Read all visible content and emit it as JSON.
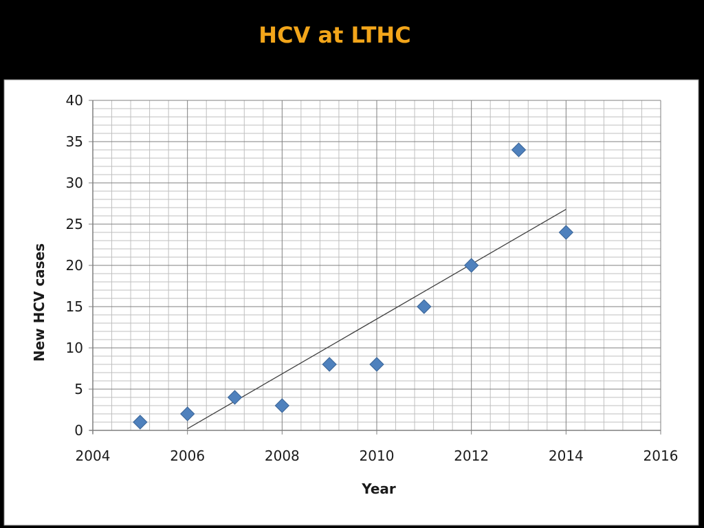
{
  "slide": {
    "title": "HCV at LTHC"
  },
  "chart_data": {
    "type": "scatter",
    "title": "",
    "xlabel": "Year",
    "ylabel": "New HCV cases",
    "xlim": [
      2004,
      2016
    ],
    "ylim": [
      0,
      40
    ],
    "x_ticks": [
      2004,
      2006,
      2008,
      2010,
      2012,
      2014,
      2016
    ],
    "y_ticks": [
      0,
      5,
      10,
      15,
      20,
      25,
      30,
      35,
      40
    ],
    "grid": true,
    "legend": "none",
    "series": [
      {
        "marker": "diamond",
        "color": "#4F81BD",
        "x": [
          2005,
          2006,
          2007,
          2008,
          2009,
          2010,
          2011,
          2012,
          2013,
          2014
        ],
        "y": [
          1,
          2,
          4,
          3,
          8,
          8,
          15,
          20,
          34,
          24
        ]
      }
    ],
    "trendline": {
      "type": "linear",
      "x": [
        2006,
        2014
      ],
      "y": [
        0.2,
        26.8
      ],
      "color": "#404040"
    }
  }
}
